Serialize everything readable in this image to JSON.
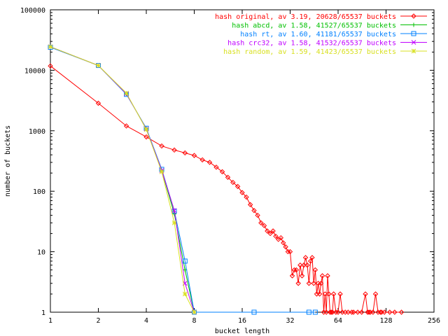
{
  "chart_data": {
    "type": "line",
    "title": "",
    "xlabel": "bucket length",
    "ylabel": "number of buckets",
    "xscale": "log2",
    "yscale": "log10",
    "xlim": [
      1,
      256
    ],
    "ylim": [
      1,
      100000
    ],
    "x_ticks": [
      1,
      2,
      4,
      8,
      16,
      32,
      64,
      128,
      256
    ],
    "x_tick_labels": [
      "1",
      "2",
      "4",
      "8",
      "16",
      "32",
      "64",
      "128",
      "256"
    ],
    "y_ticks": [
      1,
      10,
      100,
      1000,
      10000,
      100000
    ],
    "y_tick_labels": [
      "1",
      "10",
      "100",
      "1000",
      "10000",
      "100000"
    ],
    "grid": false,
    "legend_position": "top-right",
    "series": [
      {
        "name": "hash original, av 3.19, 20628/65537 buckets",
        "color": "#ff0000",
        "marker": "diamond",
        "points": [
          [
            1,
            11800
          ],
          [
            2,
            2850
          ],
          [
            3,
            1200
          ],
          [
            4,
            790
          ],
          [
            5,
            560
          ],
          [
            6,
            480
          ],
          [
            7,
            430
          ],
          [
            8,
            390
          ],
          [
            9,
            330
          ],
          [
            10,
            300
          ],
          [
            11,
            250
          ],
          [
            12,
            210
          ],
          [
            13,
            170
          ],
          [
            14,
            140
          ],
          [
            15,
            120
          ],
          [
            16,
            95
          ],
          [
            17,
            80
          ],
          [
            18,
            60
          ],
          [
            19,
            48
          ],
          [
            20,
            40
          ],
          [
            21,
            30
          ],
          [
            22,
            27
          ],
          [
            23,
            22
          ],
          [
            24,
            20
          ],
          [
            25,
            22
          ],
          [
            26,
            18
          ],
          [
            27,
            16
          ],
          [
            28,
            17
          ],
          [
            29,
            14
          ],
          [
            30,
            12
          ],
          [
            31,
            10
          ],
          [
            32,
            10
          ],
          [
            33,
            4
          ],
          [
            34,
            5
          ],
          [
            35,
            5
          ],
          [
            36,
            3
          ],
          [
            37,
            6
          ],
          [
            38,
            4
          ],
          [
            39,
            6
          ],
          [
            40,
            8
          ],
          [
            41,
            6
          ],
          [
            42,
            3
          ],
          [
            43,
            7
          ],
          [
            44,
            8
          ],
          [
            45,
            3
          ],
          [
            46,
            5
          ],
          [
            47,
            2
          ],
          [
            48,
            3
          ],
          [
            49,
            2
          ],
          [
            50,
            3
          ],
          [
            51,
            4
          ],
          [
            52,
            1
          ],
          [
            53,
            2
          ],
          [
            54,
            1
          ],
          [
            55,
            4
          ],
          [
            56,
            2
          ],
          [
            57,
            1
          ],
          [
            58,
            1
          ],
          [
            59,
            1
          ],
          [
            60,
            2
          ],
          [
            62,
            1
          ],
          [
            64,
            1
          ],
          [
            66,
            2
          ],
          [
            68,
            1
          ],
          [
            71,
            1
          ],
          [
            74,
            1
          ],
          [
            78,
            1
          ],
          [
            80,
            1
          ],
          [
            85,
            1
          ],
          [
            90,
            1
          ],
          [
            95,
            2
          ],
          [
            98,
            1
          ],
          [
            100,
            1
          ],
          [
            102,
            1
          ],
          [
            106,
            1
          ],
          [
            110,
            2
          ],
          [
            114,
            1
          ],
          [
            118,
            1
          ],
          [
            120,
            1
          ],
          [
            125,
            1
          ],
          [
            135,
            1
          ],
          [
            145,
            1
          ],
          [
            160,
            1
          ]
        ]
      },
      {
        "name": "hash abcd, av 1.58, 41527/65537 buckets",
        "color": "#00c000",
        "marker": "plus",
        "points": [
          [
            1,
            24500
          ],
          [
            2,
            12000
          ],
          [
            3,
            4100
          ],
          [
            4,
            1080
          ],
          [
            5,
            220
          ],
          [
            6,
            42
          ],
          [
            7,
            5
          ],
          [
            8,
            1
          ]
        ]
      },
      {
        "name": "hash rt, av 1.60, 41181/65537 buckets",
        "color": "#0080ff",
        "marker": "square",
        "points": [
          [
            1,
            24000
          ],
          [
            2,
            12000
          ],
          [
            3,
            4000
          ],
          [
            4,
            1100
          ],
          [
            5,
            230
          ],
          [
            6,
            47
          ],
          [
            7,
            7
          ],
          [
            8,
            1
          ],
          [
            19,
            1
          ],
          [
            42,
            1
          ],
          [
            46,
            1
          ]
        ]
      },
      {
        "name": "hash crc32, av 1.58, 41532/65537 buckets",
        "color": "#c000ff",
        "marker": "cross",
        "points": [
          [
            1,
            24500
          ],
          [
            2,
            12000
          ],
          [
            3,
            4100
          ],
          [
            4,
            1070
          ],
          [
            5,
            220
          ],
          [
            6,
            48
          ],
          [
            7,
            3
          ],
          [
            8,
            1
          ]
        ]
      },
      {
        "name": "hash random, av 1.59, 41423/65537 buckets",
        "color": "#d8e020",
        "marker": "star",
        "points": [
          [
            1,
            24500
          ],
          [
            2,
            12000
          ],
          [
            3,
            4200
          ],
          [
            4,
            1050
          ],
          [
            5,
            210
          ],
          [
            6,
            30
          ],
          [
            7,
            2
          ],
          [
            8,
            1
          ]
        ]
      }
    ]
  }
}
